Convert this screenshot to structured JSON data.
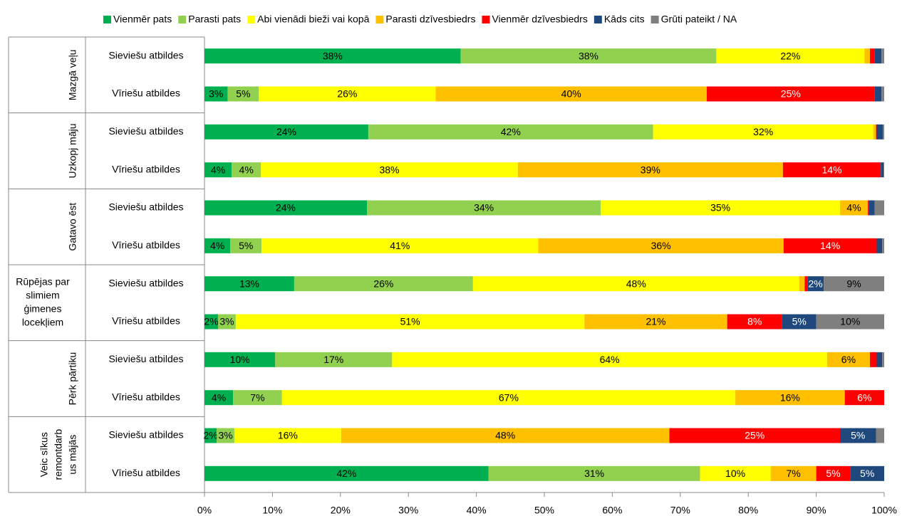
{
  "chart_data": {
    "type": "stacked-bar-horizontal",
    "categories": [
      "Sieviešu atbildes",
      "Vīriešu atbildes",
      "Sieviešu atbildes",
      "Vīriešu atbildes",
      "Sieviešu atbildes",
      "Vīriešu atbildes",
      "Sieviešu atbildes",
      "Vīriešu atbildes",
      "Sieviešu atbildes",
      "Vīriešu atbildes",
      "Sieviešu atbildes",
      "Vīriešu atbildes"
    ],
    "groups": [
      [
        "Mazgā veļu"
      ],
      [
        "Uzkopj māju"
      ],
      [
        "Gatavo ēst"
      ],
      [
        "Rūpējas par",
        "slimiem",
        "ģimenes",
        "locekļiem"
      ],
      [
        "Pērk pārtiku"
      ],
      [
        "Veic sīkus",
        "remontdarb",
        "us mājās"
      ]
    ],
    "series": [
      {
        "name": "Vienmēr pats",
        "color": "#00b050",
        "values": [
          37.7,
          3.4,
          24.1,
          4.0,
          23.9,
          3.8,
          13.2,
          2.0,
          10.4,
          4.2,
          1.8,
          41.8
        ],
        "value_labels": [
          "38%",
          "3%",
          "24%",
          "4%",
          "24%",
          "4%",
          "13%",
          "2%",
          "10%",
          "4%",
          "2%",
          "42%"
        ]
      },
      {
        "name": "Parasti pats",
        "color": "#92d050",
        "values": [
          37.6,
          4.6,
          41.9,
          4.3,
          34.4,
          4.6,
          26.3,
          2.6,
          17.2,
          7.2,
          2.6,
          31.1
        ],
        "value_labels": [
          "38%",
          "5%",
          "42%",
          "4%",
          "34%",
          "5%",
          "26%",
          "3%",
          "17%",
          "7%",
          "3%",
          "31%"
        ]
      },
      {
        "name": "Abi vienādi bieži vai kopā",
        "color": "#ffff00",
        "values": [
          21.8,
          26.0,
          32.4,
          37.8,
          35.2,
          40.7,
          48.0,
          51.3,
          64.0,
          66.7,
          15.7,
          10.4
        ],
        "value_labels": [
          "22%",
          "26%",
          "32%",
          "38%",
          "35%",
          "41%",
          "48%",
          "51%",
          "64%",
          "67%",
          "16%",
          "10%"
        ]
      },
      {
        "name": "Parasti dzīvesbiedrs",
        "color": "#ffc000",
        "values": [
          0.8,
          39.9,
          0.4,
          39.0,
          4.1,
          36.1,
          0.8,
          21.0,
          6.3,
          16.1,
          48.3,
          6.7
        ],
        "value_labels": [
          null,
          "40%",
          null,
          "39%",
          "4%",
          "36%",
          null,
          "21%",
          "6%",
          "16%",
          "48%",
          "7%"
        ]
      },
      {
        "name": "Vienmēr dzīvesbiedrs",
        "color": "#ff0000",
        "values": [
          0.7,
          24.7,
          0.1,
          14.4,
          0.2,
          13.7,
          0.4,
          8.1,
          1.0,
          5.8,
          25.1,
          5.0
        ],
        "value_labels": [
          null,
          "25%",
          null,
          "14%",
          null,
          "14%",
          null,
          "8%",
          null,
          "6%",
          "25%",
          "5%"
        ]
      },
      {
        "name": "Kāds cits",
        "color": "#1f497d",
        "values": [
          1.0,
          1.0,
          0.9,
          0.4,
          0.8,
          0.8,
          2.4,
          5.0,
          0.8,
          0,
          5.3,
          5.0
        ],
        "value_labels": [
          null,
          null,
          null,
          null,
          null,
          null,
          "2%",
          "5%",
          null,
          null,
          "5%",
          "5%"
        ]
      },
      {
        "name": "Grūti pateikt / NA",
        "color": "#7f7f7f",
        "values": [
          0.4,
          0.4,
          0.2,
          0.1,
          1.4,
          0.3,
          8.9,
          10.0,
          0.3,
          0,
          1.2,
          0
        ],
        "value_labels": [
          null,
          null,
          null,
          null,
          null,
          null,
          "9%",
          "10%",
          null,
          null,
          null,
          null
        ]
      }
    ],
    "xlim": [
      0,
      100
    ],
    "xticks": [
      {
        "value": 0,
        "label": "0%"
      },
      {
        "value": 10,
        "label": "10%"
      },
      {
        "value": 20,
        "label": "20%"
      },
      {
        "value": 30,
        "label": "30%"
      },
      {
        "value": 40,
        "label": "40%"
      },
      {
        "value": 50,
        "label": "50%"
      },
      {
        "value": 60,
        "label": "60%"
      },
      {
        "value": 70,
        "label": "70%"
      },
      {
        "value": 80,
        "label": "80%"
      },
      {
        "value": 90,
        "label": "90%"
      },
      {
        "value": 100,
        "label": "100%"
      }
    ],
    "legend": "top"
  }
}
